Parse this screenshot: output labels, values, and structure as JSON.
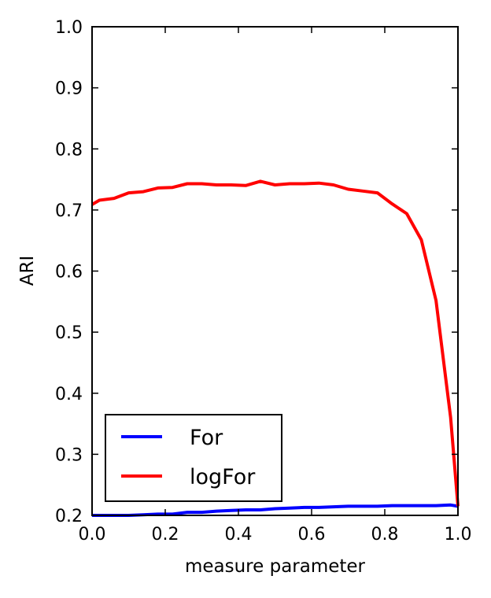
{
  "chart_data": {
    "type": "line",
    "xlabel": "measure parameter",
    "ylabel": "ARI",
    "xlim": [
      0.0,
      1.0
    ],
    "ylim": [
      0.2,
      1.0
    ],
    "xticks": [
      "0.0",
      "0.2",
      "0.4",
      "0.6",
      "0.8",
      "1.0"
    ],
    "yticks": [
      "0.2",
      "0.3",
      "0.4",
      "0.5",
      "0.6",
      "0.7",
      "0.8",
      "0.9",
      "1.0"
    ],
    "grid": false,
    "legend_position": "lower-left",
    "series": [
      {
        "name": "For",
        "color": "#0000ff",
        "x": [
          0.0,
          0.02,
          0.06,
          0.1,
          0.14,
          0.18,
          0.22,
          0.26,
          0.3,
          0.34,
          0.38,
          0.42,
          0.46,
          0.5,
          0.54,
          0.58,
          0.62,
          0.66,
          0.7,
          0.74,
          0.78,
          0.82,
          0.86,
          0.9,
          0.94,
          0.98,
          1.0
        ],
        "y": [
          0.2,
          0.2,
          0.2,
          0.2,
          0.201,
          0.202,
          0.202,
          0.205,
          0.205,
          0.207,
          0.208,
          0.209,
          0.209,
          0.211,
          0.212,
          0.213,
          0.213,
          0.214,
          0.215,
          0.215,
          0.215,
          0.216,
          0.216,
          0.216,
          0.216,
          0.217,
          0.215
        ]
      },
      {
        "name": "logFor",
        "color": "#ff0000",
        "x": [
          0.0,
          0.02,
          0.06,
          0.1,
          0.14,
          0.18,
          0.22,
          0.26,
          0.3,
          0.34,
          0.38,
          0.42,
          0.46,
          0.5,
          0.54,
          0.58,
          0.62,
          0.66,
          0.7,
          0.74,
          0.78,
          0.82,
          0.86,
          0.9,
          0.94,
          0.98,
          1.0
        ],
        "y": [
          0.709,
          0.716,
          0.719,
          0.728,
          0.73,
          0.736,
          0.737,
          0.743,
          0.743,
          0.741,
          0.741,
          0.74,
          0.747,
          0.741,
          0.743,
          0.743,
          0.744,
          0.741,
          0.734,
          0.731,
          0.728,
          0.71,
          0.694,
          0.651,
          0.552,
          0.36,
          0.215
        ]
      }
    ]
  }
}
